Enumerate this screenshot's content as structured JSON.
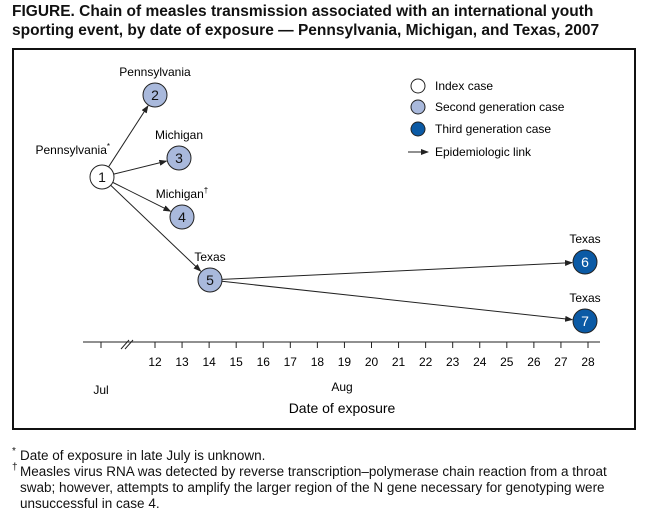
{
  "title": "FIGURE. Chain of measles transmission associated with an international youth sporting event, by date of exposure — Pennsylvania, Michigan, and Texas, 2007",
  "colors": {
    "index": "#ffffff",
    "second": "#a9b9dc",
    "third": "#0b5aa5",
    "line": "#222222"
  },
  "nodes": [
    {
      "id": "1",
      "label": "Pennsylvania",
      "mark": "*",
      "type": "index"
    },
    {
      "id": "2",
      "label": "Pennsylvania",
      "mark": "",
      "type": "second"
    },
    {
      "id": "3",
      "label": "Michigan",
      "mark": "",
      "type": "second"
    },
    {
      "id": "4",
      "label": "Michigan",
      "mark": "†",
      "type": "second"
    },
    {
      "id": "5",
      "label": "Texas",
      "mark": "",
      "type": "second",
      "date": "Aug 14"
    },
    {
      "id": "6",
      "label": "Texas",
      "mark": "",
      "type": "third",
      "date": "Aug 28"
    },
    {
      "id": "7",
      "label": "Texas",
      "mark": "",
      "type": "third",
      "date": "Aug 28"
    }
  ],
  "links": [
    [
      "1",
      "2"
    ],
    [
      "1",
      "3"
    ],
    [
      "1",
      "4"
    ],
    [
      "1",
      "5"
    ],
    [
      "5",
      "6"
    ],
    [
      "5",
      "7"
    ]
  ],
  "legend": {
    "index": "Index case",
    "second": "Second generation case",
    "third": "Third generation case",
    "link": "Epidemiologic link"
  },
  "axis": {
    "ticks": [
      "12",
      "13",
      "14",
      "15",
      "16",
      "17",
      "18",
      "19",
      "20",
      "21",
      "22",
      "23",
      "24",
      "25",
      "26",
      "27",
      "28"
    ],
    "month_jul": "Jul",
    "month_aug": "Aug",
    "label": "Date of exposure"
  },
  "footnotes": [
    {
      "mark": "*",
      "text": "Date of exposure in late July is unknown."
    },
    {
      "mark": "†",
      "text": "Measles virus RNA was detected by reverse transcription–polymerase chain reaction from a throat swab; however, attempts to amplify the larger region of the N gene necessary for genotyping were unsuccessful in case 4."
    }
  ]
}
